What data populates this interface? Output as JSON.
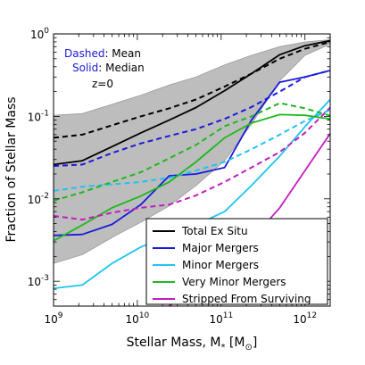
{
  "chart_data": {
    "type": "line",
    "xlabel_prefix": "Stellar Mass, M",
    "xlabel_sub": "*",
    "xlabel_unit_open": " [M",
    "xlabel_unit_sub": "⊙",
    "xlabel_unit_close": "]",
    "ylabel": "Fraction of Stellar Mass",
    "xscale": "log",
    "yscale": "log",
    "xlim": [
      1000000000.0,
      2000000000000.0
    ],
    "ylim": [
      0.0005,
      1.0
    ],
    "x_ticks": [
      {
        "value": 1000000000.0,
        "base": "10",
        "exp": "9"
      },
      {
        "value": 10000000000.0,
        "base": "10",
        "exp": "10"
      },
      {
        "value": 100000000000.0,
        "base": "10",
        "exp": "11"
      },
      {
        "value": 1000000000000.0,
        "base": "10",
        "exp": "12"
      }
    ],
    "y_ticks": [
      {
        "value": 0.001,
        "base": "10",
        "exp": "-3"
      },
      {
        "value": 0.01,
        "base": "10",
        "exp": "-2"
      },
      {
        "value": 0.1,
        "base": "10",
        "exp": "-1"
      },
      {
        "value": 1.0,
        "base": "10",
        "exp": "0"
      }
    ],
    "annotations": {
      "dashed_word": "Dashed",
      "dashed_rest": ": Mean",
      "solid_word": "Solid",
      "solid_rest": ": Median",
      "redshift": "z=0"
    },
    "legend_placement": "lower-right",
    "legend": [
      {
        "label": "Total Ex Situ",
        "color": "#000000"
      },
      {
        "label": "Major Mergers",
        "color": "#1a1adb"
      },
      {
        "label": "Minor Mergers",
        "color": "#1fc4f0"
      },
      {
        "label": "Very Minor Mergers",
        "color": "#1fb81f"
      },
      {
        "label": "Stripped From Surviving",
        "color": "#c21cc2"
      }
    ],
    "x": [
      1000000000.0,
      2200000000.0,
      5000000000.0,
      11000000000.0,
      24000000000.0,
      50000000000.0,
      110000000000.0,
      230000000000.0,
      500000000000.0,
      1000000000000.0,
      2000000000000.0
    ],
    "band": {
      "color": "#bdbdbd",
      "lower": [
        0.00165,
        0.0021,
        0.0034,
        0.0052,
        0.0082,
        0.0145,
        0.029,
        0.08,
        0.27,
        0.55,
        0.75
      ],
      "upper": [
        0.103,
        0.108,
        0.14,
        0.18,
        0.24,
        0.3,
        0.42,
        0.55,
        0.7,
        0.8,
        0.85
      ]
    },
    "series": [
      {
        "name": "Total Ex Situ",
        "stat": "median",
        "color": "#000000",
        "values": [
          0.026,
          0.029,
          0.043,
          0.063,
          0.09,
          0.128,
          0.205,
          0.33,
          0.56,
          0.72,
          0.83
        ]
      },
      {
        "name": "Total Ex Situ",
        "stat": "mean",
        "color": "#000000",
        "values": [
          0.055,
          0.06,
          0.078,
          0.1,
          0.125,
          0.16,
          0.23,
          0.33,
          0.5,
          0.66,
          0.8
        ]
      },
      {
        "name": "Major Mergers",
        "stat": "median",
        "color": "#1a1adb",
        "values": [
          0.0036,
          0.0037,
          0.0049,
          0.0085,
          0.019,
          0.02,
          0.024,
          0.09,
          0.26,
          0.3,
          0.36
        ]
      },
      {
        "name": "Major Mergers",
        "stat": "mean",
        "color": "#1a1adb",
        "values": [
          0.025,
          0.026,
          0.036,
          0.047,
          0.058,
          0.07,
          0.093,
          0.13,
          0.2,
          0.3,
          0.36
        ]
      },
      {
        "name": "Minor Mergers",
        "stat": "median",
        "color": "#1fc4f0",
        "values": [
          0.00082,
          0.0009,
          0.00165,
          0.0026,
          0.0036,
          0.0048,
          0.007,
          0.0145,
          0.033,
          0.075,
          0.16
        ]
      },
      {
        "name": "Minor Mergers",
        "stat": "mean",
        "color": "#1fc4f0",
        "values": [
          0.0125,
          0.014,
          0.015,
          0.016,
          0.018,
          0.022,
          0.028,
          0.04,
          0.06,
          0.088,
          0.12
        ]
      },
      {
        "name": "Very Minor Mergers",
        "stat": "median",
        "color": "#1fb81f",
        "values": [
          0.0031,
          0.0048,
          0.0078,
          0.0108,
          0.016,
          0.028,
          0.055,
          0.083,
          0.105,
          0.103,
          0.093
        ]
      },
      {
        "name": "Very Minor Mergers",
        "stat": "mean",
        "color": "#1fb81f",
        "values": [
          0.0095,
          0.012,
          0.016,
          0.021,
          0.031,
          0.045,
          0.076,
          0.1,
          0.145,
          0.125,
          0.102
        ]
      },
      {
        "name": "Stripped From Surviving",
        "stat": "median",
        "color": "#c21cc2",
        "values": [
          null,
          null,
          null,
          0.00035,
          0.0005,
          0.00085,
          0.0015,
          0.0032,
          0.0078,
          0.022,
          0.062
        ]
      },
      {
        "name": "Stripped From Surviving",
        "stat": "mean",
        "color": "#c21cc2",
        "values": [
          0.0062,
          0.0056,
          0.0068,
          0.0078,
          0.0085,
          0.011,
          0.016,
          0.024,
          0.037,
          0.063,
          0.128
        ]
      }
    ]
  }
}
